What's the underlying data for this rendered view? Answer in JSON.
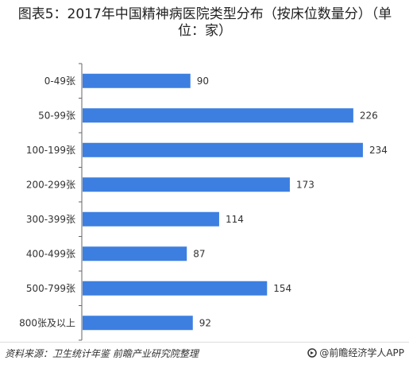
{
  "title_lines": [
    "图表5：2017年中国精神病医院类型分布（按床位数量分）（单",
    "位：家）"
  ],
  "source": "资料来源：卫生统计年鉴 前瞻产业研究院整理",
  "brand": "@前瞻经济学人APP",
  "colors": {
    "bar": "#3c7fe0"
  },
  "icons": {
    "brand": "brand-logo-icon"
  },
  "chart_data": {
    "type": "bar",
    "orientation": "horizontal",
    "title": "图表5：2017年中国精神病医院类型分布（按床位数量分）（单位：家）",
    "categories": [
      "0-49张",
      "50-99张",
      "100-199张",
      "200-299张",
      "300-399张",
      "400-499张",
      "500-799张",
      "800张及以上"
    ],
    "values": [
      90,
      226,
      234,
      173,
      114,
      87,
      154,
      92
    ],
    "xlim": [
      0,
      240
    ],
    "grid": false,
    "legend": "none"
  }
}
